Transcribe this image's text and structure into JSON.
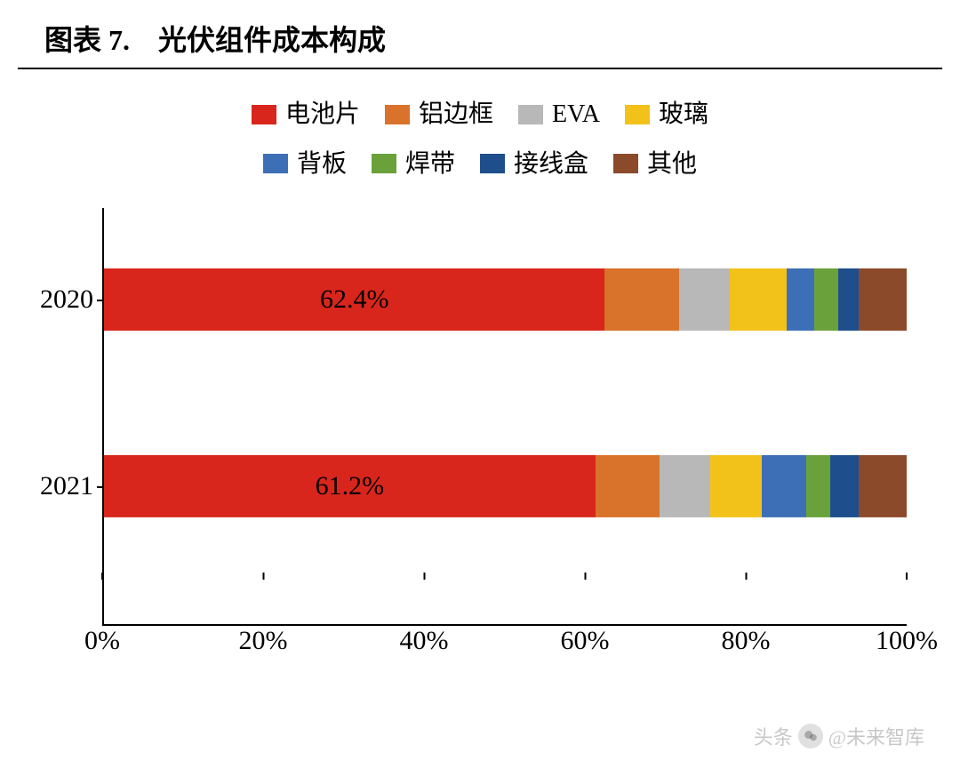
{
  "title_prefix": "图表 7.",
  "title_text": "光伏组件成本构成",
  "chart": {
    "type": "stacked-bar-horizontal",
    "xlim": [
      0,
      100
    ],
    "xtick_step": 20,
    "xtick_labels": [
      "0%",
      "20%",
      "40%",
      "60%",
      "80%",
      "100%"
    ],
    "bar_height_pct": 15,
    "bar_positions_pct": [
      22,
      67
    ],
    "background_color": "#ffffff",
    "axis_color": "#000000",
    "label_font": "Times New Roman",
    "label_fontsize": 30,
    "legend_fontsize": 28,
    "categories": [
      {
        "key": "cell",
        "label": "电池片",
        "color": "#d9261c"
      },
      {
        "key": "frame",
        "label": "铝边框",
        "color": "#d9722a"
      },
      {
        "key": "eva",
        "label": "EVA",
        "color": "#b8b8b8"
      },
      {
        "key": "glass",
        "label": "玻璃",
        "color": "#f2c21a"
      },
      {
        "key": "backsheet",
        "label": "背板",
        "color": "#3d6fb6"
      },
      {
        "key": "ribbon",
        "label": "焊带",
        "color": "#6aa13a"
      },
      {
        "key": "jbox",
        "label": "接线盒",
        "color": "#1e4e8c"
      },
      {
        "key": "other",
        "label": "其他",
        "color": "#8b4a2a"
      }
    ],
    "legend_rows": [
      [
        "cell",
        "frame",
        "eva",
        "glass"
      ],
      [
        "backsheet",
        "ribbon",
        "jbox",
        "other"
      ]
    ],
    "series": [
      {
        "name": "2020",
        "show_label_for": "cell",
        "shown_label": "62.4%",
        "values": {
          "cell": 62.4,
          "frame": 9.3,
          "eva": 6.3,
          "glass": 7.0,
          "backsheet": 3.5,
          "ribbon": 3.0,
          "jbox": 2.5,
          "other": 6.0
        }
      },
      {
        "name": "2021",
        "show_label_for": "cell",
        "shown_label": "61.2%",
        "values": {
          "cell": 61.2,
          "frame": 8.0,
          "eva": 6.3,
          "glass": 6.5,
          "backsheet": 5.5,
          "ribbon": 3.0,
          "jbox": 3.5,
          "other": 6.0
        }
      }
    ]
  },
  "watermark": {
    "prefix": "头条",
    "text": "@未来智库"
  }
}
